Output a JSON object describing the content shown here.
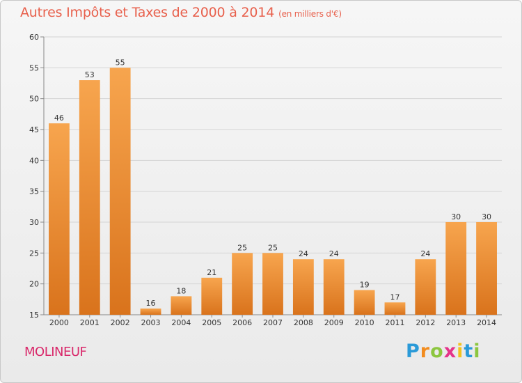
{
  "header": {
    "title": "Autres Impôts et Taxes de 2000 à 2014",
    "subtitle": "(en milliers d'€)"
  },
  "footer": {
    "commune": "MOLINEUF",
    "logo_letters": [
      "P",
      "r",
      "o",
      "x",
      "i",
      "t",
      "i"
    ],
    "logo_colors": [
      "#2a9ad8",
      "#f28c1e",
      "#8cc63f",
      "#e5338a",
      "#f2c21e",
      "#2a9ad8",
      "#8cc63f"
    ]
  },
  "chart_data": {
    "type": "bar",
    "title": "Autres Impôts et Taxes de 2000 à 2014",
    "subtitle": "(en milliers d'€)",
    "xlabel": "",
    "ylabel": "",
    "categories": [
      "2000",
      "2001",
      "2002",
      "2003",
      "2004",
      "2005",
      "2006",
      "2007",
      "2008",
      "2009",
      "2010",
      "2011",
      "2012",
      "2013",
      "2014"
    ],
    "values": [
      46,
      53,
      55,
      16,
      18,
      21,
      25,
      25,
      24,
      24,
      19,
      17,
      24,
      30,
      30
    ],
    "ylim": [
      15,
      60
    ],
    "yticks": [
      15,
      20,
      25,
      30,
      35,
      40,
      45,
      50,
      55,
      60
    ],
    "grid": true,
    "bar_color_top": "#f7a54e",
    "bar_color_bottom": "#d9731c"
  }
}
